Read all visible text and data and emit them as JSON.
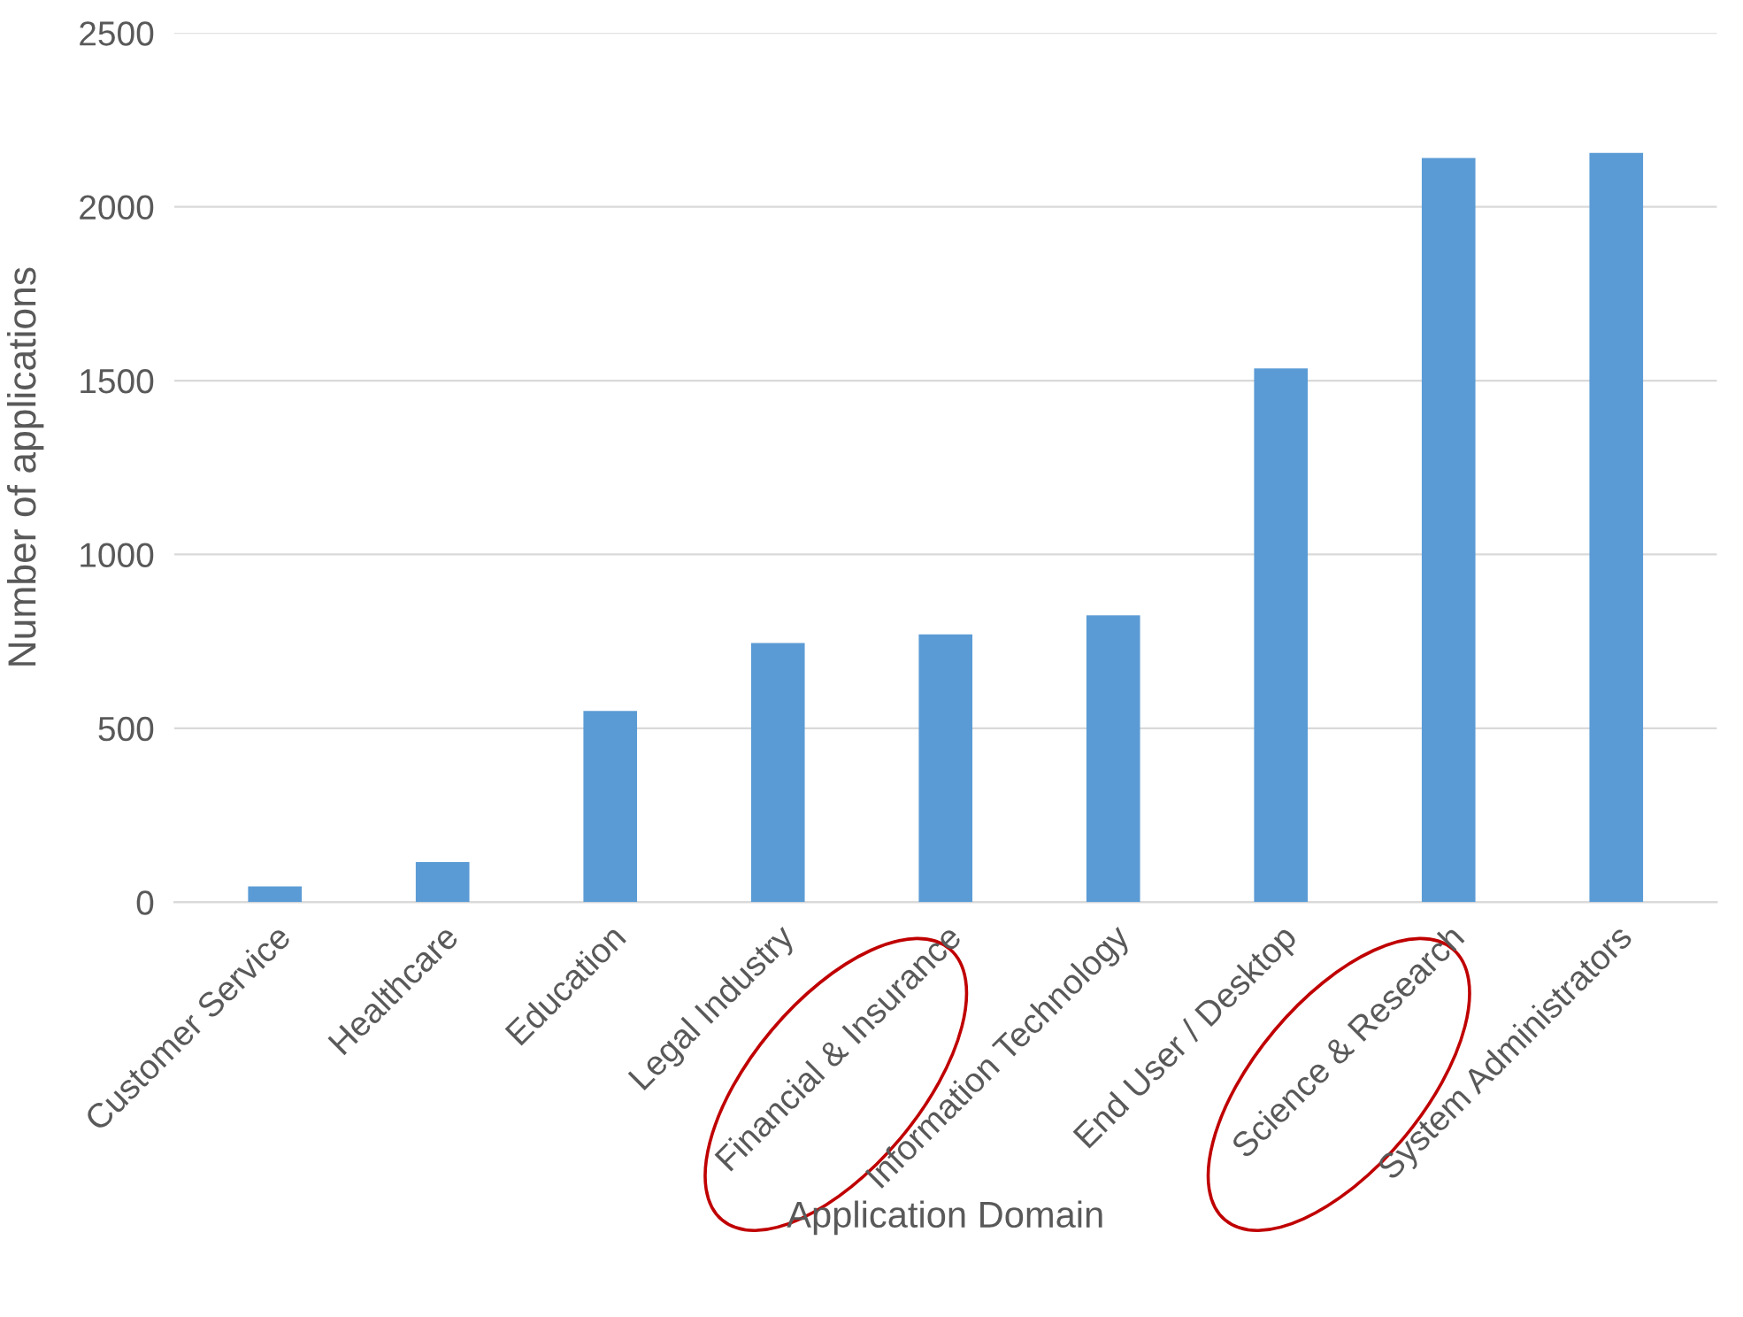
{
  "chart_data": {
    "type": "bar",
    "xlabel": "Application Domain",
    "ylabel": "Number of applications",
    "categories": [
      "Customer Service",
      "Healthcare",
      "Education",
      "Legal Industry",
      "Financial & Insurance",
      "Information Technology",
      "End User / Desktop",
      "Science & Research",
      "System Administrators"
    ],
    "values": [
      45,
      115,
      550,
      745,
      770,
      825,
      1535,
      2140,
      2155
    ],
    "color": "#5b9bd5",
    "ylim": [
      0,
      2500
    ],
    "yticks": [
      0,
      500,
      1000,
      1500,
      2000,
      2500
    ],
    "grid": "y",
    "legend": false
  }
}
